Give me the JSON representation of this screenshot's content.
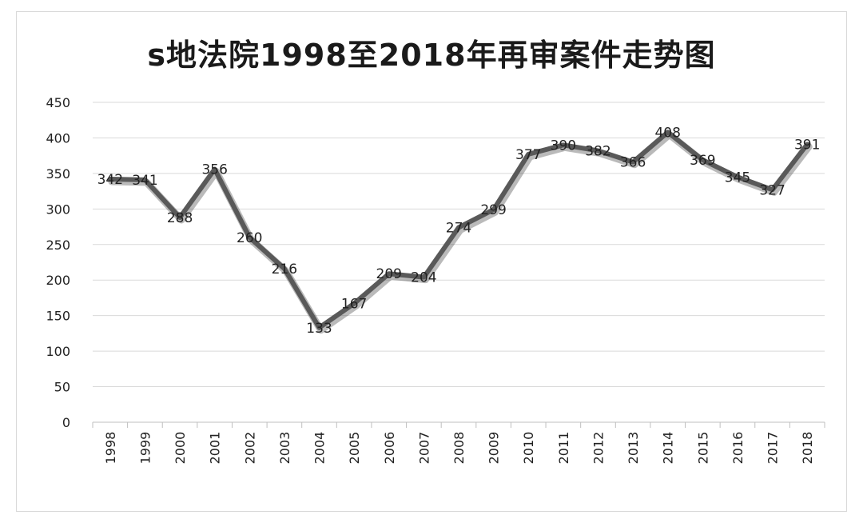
{
  "chart_data": {
    "type": "line",
    "title": "s地法院1998至2018年再审案件走势图",
    "categories": [
      "1998",
      "1999",
      "2000",
      "2001",
      "2002",
      "2003",
      "2004",
      "2005",
      "2006",
      "2007",
      "2008",
      "2009",
      "2010",
      "2011",
      "2012",
      "2013",
      "2014",
      "2015",
      "2016",
      "2017",
      "2018"
    ],
    "series": [
      {
        "values": [
          342,
          341,
          288,
          356,
          260,
          216,
          133,
          167,
          209,
          204,
          274,
          299,
          377,
          390,
          382,
          366,
          408,
          369,
          345,
          327,
          391
        ]
      }
    ],
    "ylim": [
      0,
      450
    ],
    "yticks": [
      0,
      50,
      100,
      150,
      200,
      250,
      300,
      350,
      400,
      450
    ],
    "grid": true,
    "legend": "none",
    "line_color": "#595959"
  }
}
